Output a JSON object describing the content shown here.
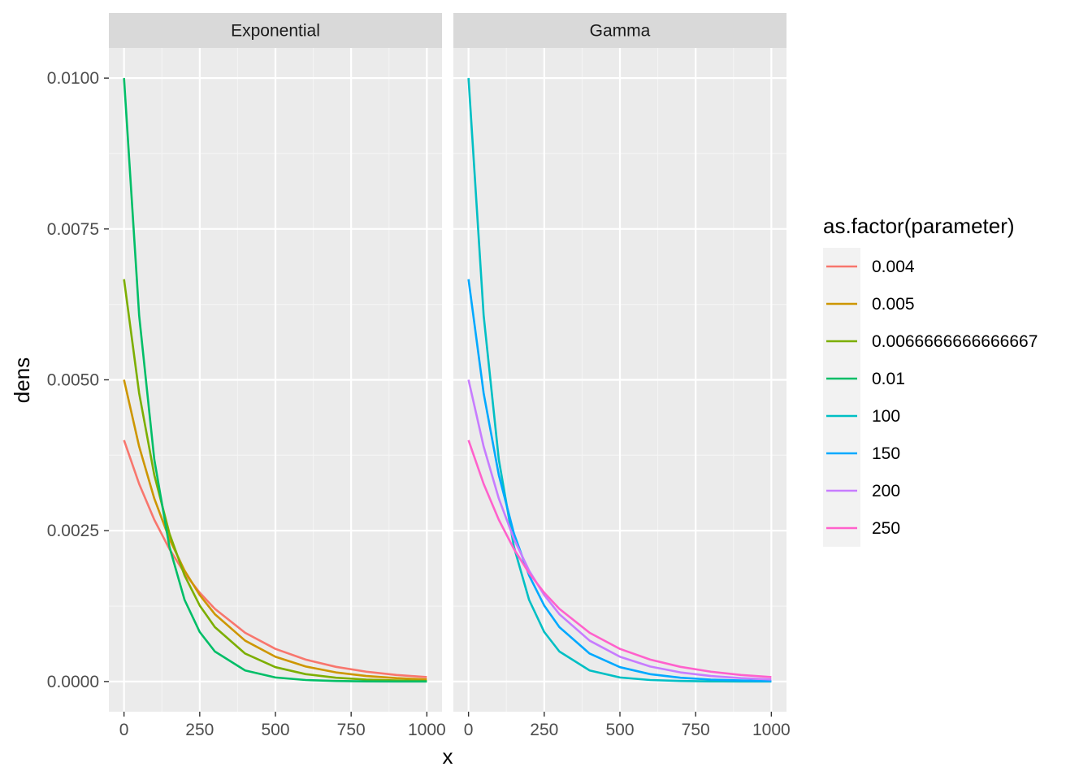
{
  "chart_data": {
    "type": "line",
    "x_axis_label": "x",
    "y_axis_label": "dens",
    "x_ticks": [
      0,
      250,
      500,
      750,
      1000
    ],
    "x_tick_labels": [
      "0",
      "250",
      "500",
      "750",
      "1000"
    ],
    "y_ticks": [
      0,
      0.0025,
      0.005,
      0.0075,
      0.01
    ],
    "y_tick_labels": [
      "0.0000",
      "0.0025",
      "0.0050",
      "0.0075",
      "0.0100"
    ],
    "xlim": [
      -50,
      1050
    ],
    "ylim": [
      -0.0005,
      0.0105
    ],
    "grid": true,
    "legend": {
      "title": "as.factor(parameter)",
      "position": "right",
      "entries": [
        {
          "label": "0.004",
          "color": "#F8766D"
        },
        {
          "label": "0.005",
          "color": "#CD9600"
        },
        {
          "label": "0.0066666666666667",
          "color": "#7CAE00"
        },
        {
          "label": "0.01",
          "color": "#00BE67"
        },
        {
          "label": "100",
          "color": "#00BFC4"
        },
        {
          "label": "150",
          "color": "#00A9FF"
        },
        {
          "label": "200",
          "color": "#C77CFF"
        },
        {
          "label": "250",
          "color": "#FF61CC"
        }
      ]
    },
    "facets": [
      {
        "label": "Exponential",
        "series": [
          {
            "name": "0.004",
            "color": "#F8766D",
            "x": [
              0,
              50,
              100,
              150,
              200,
              250,
              300,
              400,
              500,
              600,
              700,
              800,
              900,
              1000
            ],
            "y": [
              0.004,
              0.003275,
              0.002681,
              0.002195,
              0.001797,
              0.001472,
              0.001205,
              0.000808,
              0.000541,
              0.000363,
              0.000243,
              0.000163,
              0.000109,
              7.3e-05
            ]
          },
          {
            "name": "0.005",
            "color": "#CD9600",
            "x": [
              0,
              50,
              100,
              150,
              200,
              250,
              300,
              400,
              500,
              600,
              700,
              800,
              900,
              1000
            ],
            "y": [
              0.005,
              0.003894,
              0.003033,
              0.002362,
              0.001839,
              0.001433,
              0.001116,
              0.000677,
              0.00041,
              0.000249,
              0.000151,
              9.2e-05,
              5.6e-05,
              3.4e-05
            ]
          },
          {
            "name": "0.0066666666666667",
            "color": "#7CAE00",
            "x": [
              0,
              50,
              100,
              150,
              200,
              250,
              300,
              400,
              500,
              600,
              700,
              800,
              900,
              1000
            ],
            "y": [
              0.006667,
              0.004777,
              0.003423,
              0.002453,
              0.001758,
              0.001259,
              0.000902,
              0.000463,
              0.000238,
              0.000122,
              6.3e-05,
              3.2e-05,
              1.7e-05,
              8e-06
            ]
          },
          {
            "name": "0.01",
            "color": "#00BE67",
            "x": [
              0,
              50,
              100,
              150,
              200,
              250,
              300,
              400,
              500,
              600,
              700,
              800,
              900,
              1000
            ],
            "y": [
              0.01,
              0.006065,
              0.003679,
              0.002231,
              0.001353,
              0.000821,
              0.000498,
              0.000183,
              6.7e-05,
              2.5e-05,
              9e-06,
              3e-06,
              1e-06,
              0.0
            ]
          }
        ]
      },
      {
        "label": "Gamma",
        "series": [
          {
            "name": "100",
            "color": "#00BFC4",
            "x": [
              0,
              50,
              100,
              150,
              200,
              250,
              300,
              400,
              500,
              600,
              700,
              800,
              900,
              1000
            ],
            "y": [
              0.01,
              0.006065,
              0.003679,
              0.002231,
              0.001353,
              0.000821,
              0.000498,
              0.000183,
              6.7e-05,
              2.5e-05,
              9e-06,
              3e-06,
              1e-06,
              0.0
            ]
          },
          {
            "name": "150",
            "color": "#00A9FF",
            "x": [
              0,
              50,
              100,
              150,
              200,
              250,
              300,
              400,
              500,
              600,
              700,
              800,
              900,
              1000
            ],
            "y": [
              0.006667,
              0.004777,
              0.003423,
              0.002453,
              0.001758,
              0.001259,
              0.000902,
              0.000463,
              0.000238,
              0.000122,
              6.3e-05,
              3.2e-05,
              1.7e-05,
              8e-06
            ]
          },
          {
            "name": "200",
            "color": "#C77CFF",
            "x": [
              0,
              50,
              100,
              150,
              200,
              250,
              300,
              400,
              500,
              600,
              700,
              800,
              900,
              1000
            ],
            "y": [
              0.005,
              0.003894,
              0.003033,
              0.002362,
              0.001839,
              0.001433,
              0.001116,
              0.000677,
              0.00041,
              0.000249,
              0.000151,
              9.2e-05,
              5.6e-05,
              3.4e-05
            ]
          },
          {
            "name": "250",
            "color": "#FF61CC",
            "x": [
              0,
              50,
              100,
              150,
              200,
              250,
              300,
              400,
              500,
              600,
              700,
              800,
              900,
              1000
            ],
            "y": [
              0.004,
              0.003275,
              0.002681,
              0.002195,
              0.001797,
              0.001472,
              0.001205,
              0.000808,
              0.000541,
              0.000363,
              0.000243,
              0.000163,
              0.000109,
              7.3e-05
            ]
          }
        ]
      }
    ]
  }
}
